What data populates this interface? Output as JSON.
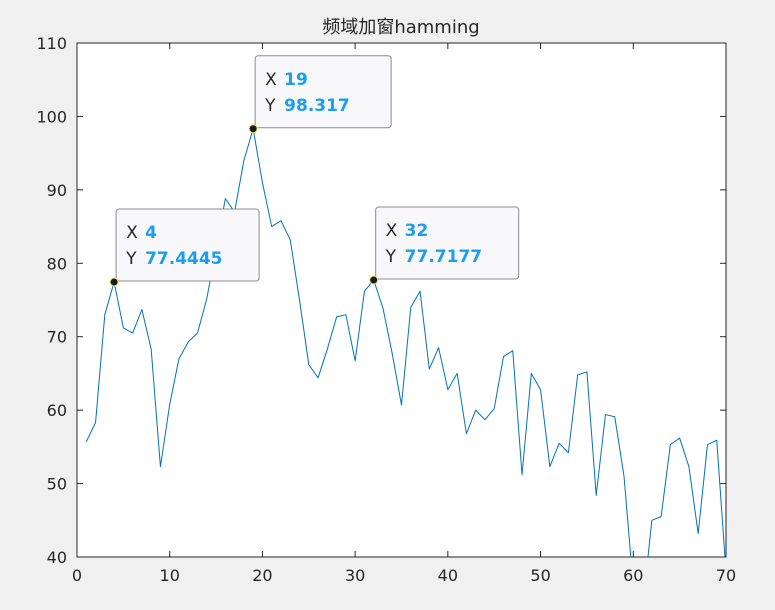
{
  "window": {
    "background": "#f0f0f0"
  },
  "chart_data": {
    "type": "line",
    "title": "频域加窗hamming",
    "xlabel": "",
    "ylabel": "",
    "xlim": [
      0,
      70
    ],
    "ylim": [
      40,
      110
    ],
    "xticks": [
      0,
      10,
      20,
      30,
      40,
      50,
      60,
      70
    ],
    "yticks": [
      40,
      50,
      60,
      70,
      80,
      90,
      100,
      110
    ],
    "grid": false,
    "line_color": "#0072bd",
    "x": [
      1,
      2,
      3,
      4,
      5,
      6,
      7,
      8,
      9,
      10,
      11,
      12,
      13,
      14,
      15,
      16,
      17,
      18,
      19,
      20,
      21,
      22,
      23,
      24,
      25,
      26,
      27,
      28,
      29,
      30,
      31,
      32,
      33,
      34,
      35,
      36,
      37,
      38,
      39,
      40,
      41,
      42,
      43,
      44,
      45,
      46,
      47,
      48,
      49,
      50,
      51,
      52,
      53,
      54,
      55,
      56,
      57,
      58,
      59,
      60,
      61,
      62,
      63,
      64,
      65,
      66,
      67,
      68,
      69,
      70
    ],
    "y": [
      55.7,
      58.3,
      73.0,
      77.4445,
      71.2,
      70.5,
      73.7,
      68.3,
      52.3,
      60.8,
      67.0,
      69.3,
      70.5,
      75.2,
      82.0,
      88.8,
      87.0,
      94.0,
      98.317,
      91.0,
      85.0,
      85.8,
      83.2,
      75.0,
      66.2,
      64.4,
      68.3,
      72.7,
      73.0,
      66.7,
      76.2,
      77.7177,
      73.9,
      67.7,
      60.7,
      74.0,
      76.2,
      65.6,
      68.5,
      62.8,
      65.0,
      56.8,
      60.0,
      58.7,
      60.2,
      67.3,
      68.1,
      51.2,
      65.0,
      62.8,
      52.3,
      55.5,
      54.2,
      64.8,
      65.2,
      48.4,
      59.4,
      59.1,
      51.0,
      36.0,
      33.0,
      45.0,
      45.5,
      55.3,
      56.2,
      52.3,
      43.2,
      55.3,
      55.9,
      38.0
    ],
    "datatips": [
      {
        "x_key": "X",
        "y_key": "Y",
        "x_value": "4",
        "y_value": "77.4445",
        "x": 4,
        "y": 77.4445
      },
      {
        "x_key": "X",
        "y_key": "Y",
        "x_value": "19",
        "y_value": "98.317",
        "x": 19,
        "y": 98.317
      },
      {
        "x_key": "X",
        "y_key": "Y",
        "x_value": "32",
        "y_value": "77.7177",
        "x": 32,
        "y": 77.7177
      }
    ],
    "tip_value_color": "#1a9ef0"
  }
}
